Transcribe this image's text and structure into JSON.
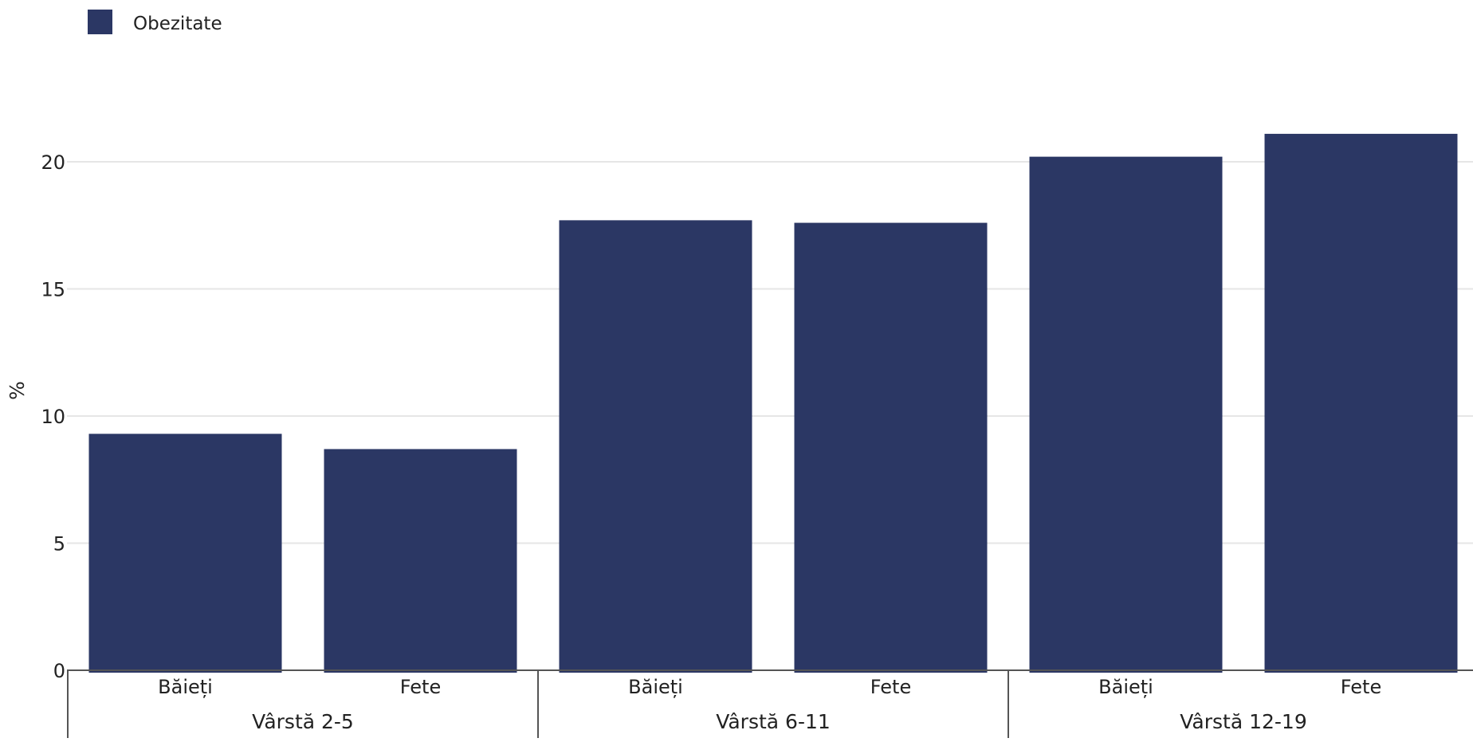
{
  "chart_data": {
    "type": "bar",
    "ylabel": "%",
    "ylim": [
      0,
      22
    ],
    "yticks": [
      0,
      5,
      10,
      15,
      20
    ],
    "grid": true,
    "legend_position": "top-left",
    "series": [
      {
        "name": "Obezitate",
        "color": "#2b3764",
        "values": [
          9.3,
          8.7,
          17.7,
          17.6,
          20.2,
          21.1
        ]
      }
    ],
    "categories": [
      "Băieți",
      "Fete",
      "Băieți",
      "Fete",
      "Băieți",
      "Fete"
    ],
    "groups": [
      {
        "label": "Vârstă 2-5",
        "count": 2
      },
      {
        "label": "Vârstă 6-11",
        "count": 2
      },
      {
        "label": "Vârstă 12-19",
        "count": 2
      }
    ]
  }
}
